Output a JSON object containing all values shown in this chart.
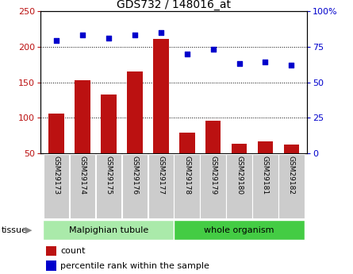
{
  "title": "GDS732 / 148016_at",
  "categories": [
    "GSM29173",
    "GSM29174",
    "GSM29175",
    "GSM29176",
    "GSM29177",
    "GSM29178",
    "GSM29179",
    "GSM29180",
    "GSM29181",
    "GSM29182"
  ],
  "count_values": [
    106,
    153,
    133,
    165,
    211,
    79,
    96,
    64,
    67,
    62
  ],
  "percentile_values": [
    79,
    83,
    81,
    83,
    85,
    70,
    73,
    63,
    64,
    62
  ],
  "left_ylim": [
    50,
    250
  ],
  "left_yticks": [
    50,
    100,
    150,
    200,
    250
  ],
  "right_ylim": [
    0,
    100
  ],
  "right_yticks": [
    0,
    25,
    50,
    75,
    100
  ],
  "bar_color": "#bb1111",
  "dot_color": "#0000cc",
  "tissue_groups": [
    {
      "label": "Malpighian tubule",
      "start": 0,
      "end": 5,
      "color": "#aaeaaa"
    },
    {
      "label": "whole organism",
      "start": 5,
      "end": 10,
      "color": "#44cc44"
    }
  ],
  "tissue_label": "tissue",
  "legend_count_label": "count",
  "legend_percentile_label": "percentile rank within the sample",
  "grid_yticks": [
    100,
    150,
    200
  ]
}
